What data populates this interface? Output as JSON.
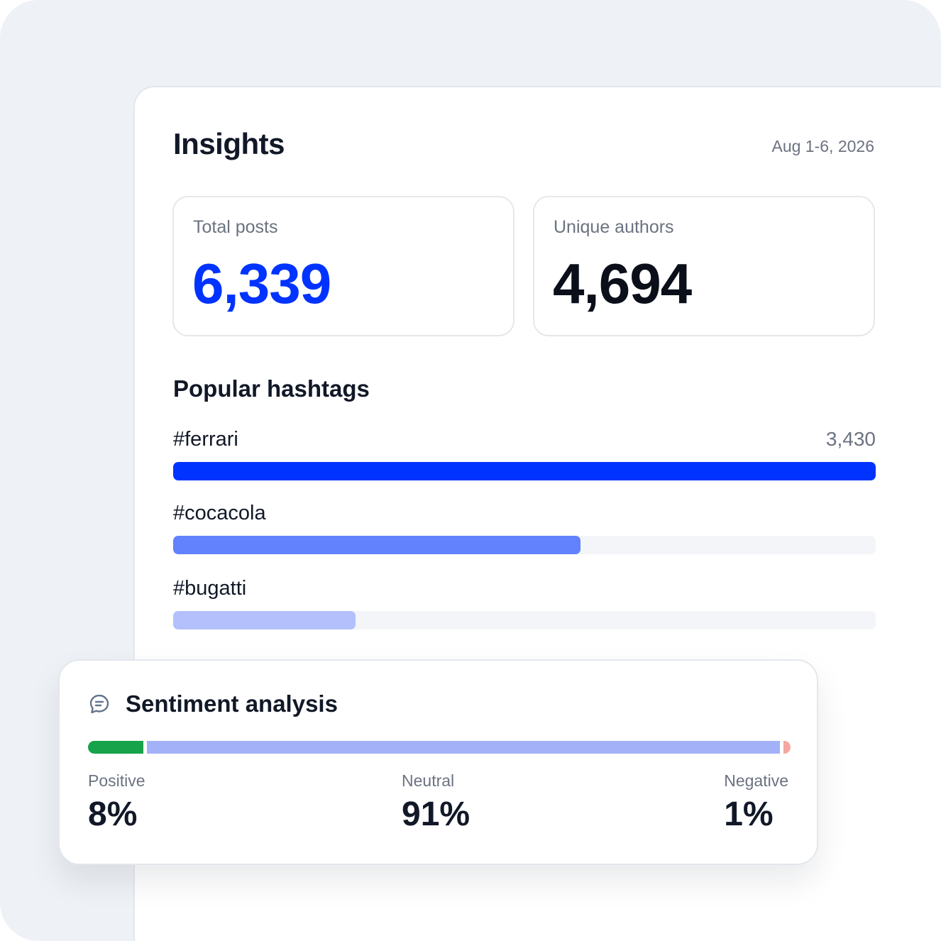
{
  "insights": {
    "title": "Insights",
    "date_range": "Aug 1-6, 2026",
    "stats": {
      "total_posts": {
        "label": "Total posts",
        "value": "6,339",
        "color": "#0033ff"
      },
      "unique_authors": {
        "label": "Unique authors",
        "value": "4,694",
        "color": "#0b0f19"
      }
    },
    "popular_hashtags": {
      "title": "Popular hashtags",
      "items": [
        {
          "tag": "#ferrari",
          "count": "3,430",
          "fraction": 1.0,
          "color": "#0033ff"
        },
        {
          "tag": "#cocacola",
          "count": "",
          "fraction": 0.58,
          "color": "#6281fc"
        },
        {
          "tag": "#bugatti",
          "count": "",
          "fraction": 0.26,
          "color": "#b3c0fb"
        }
      ]
    }
  },
  "sentiment": {
    "title": "Sentiment analysis",
    "icon": "chat-bubble-icon",
    "segments": [
      {
        "label": "Positive",
        "value": "8%",
        "percent": 8,
        "color": "#16a34a"
      },
      {
        "label": "Neutral",
        "value": "91%",
        "percent": 91,
        "color": "#a3b1f8"
      },
      {
        "label": "Negative",
        "value": "1%",
        "percent": 1,
        "color": "#f2a8a0"
      }
    ]
  }
}
